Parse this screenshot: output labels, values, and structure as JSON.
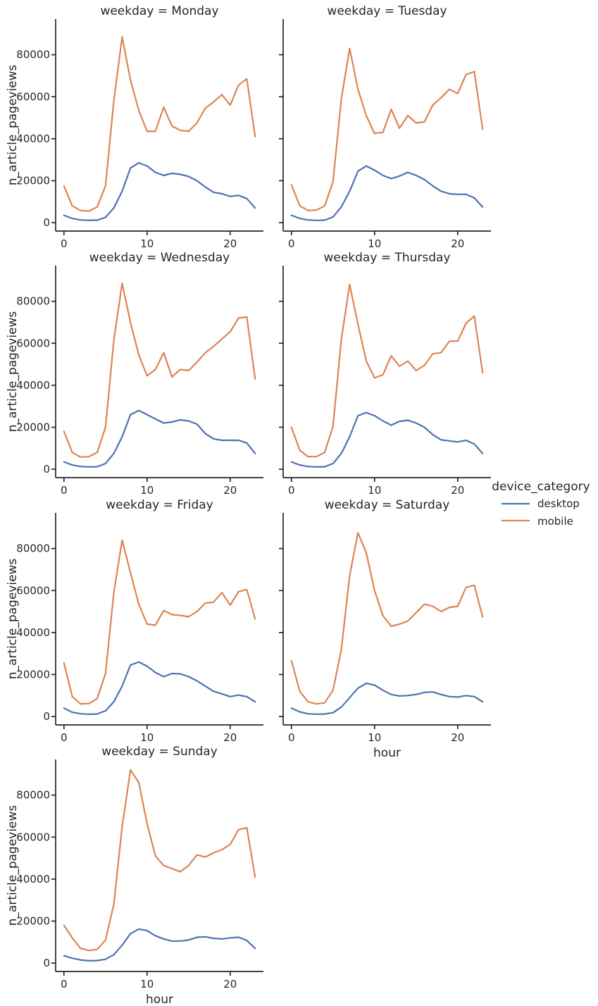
{
  "chart_data": {
    "type": "line",
    "facet_title_prefix": "weekday = ",
    "xlabel": "hour",
    "ylabel": "n_article_pageviews",
    "xlim": [
      -1,
      24
    ],
    "ylim": [
      -4000,
      97000
    ],
    "xticks": [
      0,
      10,
      20
    ],
    "yticks": [
      0,
      20000,
      40000,
      60000,
      80000
    ],
    "legend": {
      "title": "device_category",
      "position": "right",
      "entries": [
        {
          "name": "desktop",
          "color": "#4c72b0"
        },
        {
          "name": "mobile",
          "color": "#dd8452"
        }
      ]
    },
    "x": [
      0,
      1,
      2,
      3,
      4,
      5,
      6,
      7,
      8,
      9,
      10,
      11,
      12,
      13,
      14,
      15,
      16,
      17,
      18,
      19,
      20,
      21,
      22,
      23
    ],
    "panels": [
      {
        "weekday": "Monday",
        "series": [
          {
            "name": "desktop",
            "values": [
              3500,
              2000,
              1300,
              1100,
              1200,
              2500,
              7000,
              15000,
              26000,
              28500,
              27000,
              24000,
              22500,
              23500,
              23000,
              22000,
              20000,
              17000,
              14500,
              13800,
              12500,
              13000,
              11500,
              7000
            ]
          },
          {
            "name": "mobile",
            "values": [
              17500,
              8000,
              5800,
              5500,
              7500,
              17500,
              58000,
              88500,
              68000,
              53500,
              43500,
              43500,
              55000,
              46000,
              44000,
              43500,
              47500,
              54500,
              57500,
              61000,
              56000,
              65500,
              68500,
              41000
            ]
          }
        ]
      },
      {
        "weekday": "Tuesday",
        "series": [
          {
            "name": "desktop",
            "values": [
              3500,
              2000,
              1300,
              1100,
              1200,
              2700,
              7500,
              15000,
              24500,
              27000,
              25000,
              22500,
              21000,
              22200,
              24000,
              22500,
              20500,
              17500,
              15000,
              13800,
              13500,
              13500,
              11800,
              7500
            ]
          },
          {
            "name": "mobile",
            "values": [
              18000,
              8000,
              5800,
              6000,
              8000,
              19500,
              59000,
              83000,
              63500,
              51000,
              42500,
              43000,
              54000,
              45000,
              51000,
              47500,
              48000,
              56000,
              59500,
              63500,
              61500,
              70500,
              72000,
              44500
            ]
          }
        ]
      },
      {
        "weekday": "Wednesday",
        "series": [
          {
            "name": "desktop",
            "values": [
              3500,
              2000,
              1300,
              1100,
              1200,
              2700,
              7500,
              15500,
              26000,
              28000,
              26000,
              24000,
              22000,
              22500,
              23500,
              23000,
              21500,
              17000,
              14500,
              13800,
              13800,
              13800,
              12500,
              7500
            ]
          },
          {
            "name": "mobile",
            "values": [
              18000,
              8000,
              5800,
              6000,
              8000,
              20000,
              61500,
              88500,
              70000,
              54500,
              44500,
              47500,
              55500,
              44000,
              47500,
              47000,
              51000,
              55500,
              58500,
              62000,
              65500,
              72000,
              72500,
              43000
            ]
          }
        ]
      },
      {
        "weekday": "Thursday",
        "series": [
          {
            "name": "desktop",
            "values": [
              3500,
              2000,
              1300,
              1100,
              1200,
              2700,
              7500,
              15500,
              25500,
              27000,
              25500,
              23000,
              21000,
              22800,
              23300,
              22000,
              20000,
              16500,
              14000,
              13500,
              13000,
              13800,
              12000,
              7500
            ]
          },
          {
            "name": "mobile",
            "values": [
              20000,
              9000,
              6000,
              6000,
              8000,
              20500,
              62000,
              88000,
              69000,
              51500,
              43500,
              45000,
              54000,
              49000,
              51500,
              47000,
              49500,
              55000,
              55500,
              61000,
              61000,
              69500,
              73000,
              46000
            ]
          }
        ]
      },
      {
        "weekday": "Friday",
        "series": [
          {
            "name": "desktop",
            "values": [
              4000,
              2000,
              1300,
              1100,
              1200,
              2700,
              7000,
              14500,
              24500,
              26000,
              24000,
              21000,
              19000,
              20500,
              20300,
              19000,
              17000,
              14500,
              12000,
              10800,
              9500,
              10200,
              9500,
              7000
            ]
          },
          {
            "name": "mobile",
            "values": [
              25500,
              9500,
              6000,
              6200,
              8500,
              20500,
              59000,
              84000,
              68500,
              53500,
              44000,
              43500,
              50500,
              48500,
              48200,
              47500,
              50000,
              54000,
              54500,
              59000,
              53000,
              59500,
              60500,
              46500
            ]
          }
        ]
      },
      {
        "weekday": "Saturday",
        "series": [
          {
            "name": "desktop",
            "values": [
              4000,
              2200,
              1300,
              1100,
              1200,
              1800,
              4500,
              9000,
              13500,
              15800,
              15000,
              12500,
              10500,
              9800,
              10000,
              10500,
              11500,
              11700,
              10500,
              9500,
              9300,
              10000,
              9500,
              7000
            ]
          },
          {
            "name": "mobile",
            "values": [
              26500,
              12000,
              7000,
              6000,
              6500,
              12500,
              32000,
              67000,
              87500,
              78000,
              60000,
              48000,
              43000,
              44000,
              45500,
              49500,
              53500,
              52500,
              50000,
              52000,
              52500,
              61500,
              62500,
              47500
            ]
          }
        ]
      },
      {
        "weekday": "Sunday",
        "series": [
          {
            "name": "desktop",
            "values": [
              3500,
              2300,
              1500,
              1100,
              1200,
              1800,
              4000,
              8500,
              14000,
              16200,
              15500,
              13000,
              11500,
              10500,
              10500,
              11000,
              12300,
              12500,
              11800,
              11500,
              12000,
              12300,
              10800,
              7000
            ]
          },
          {
            "name": "mobile",
            "values": [
              18000,
              12000,
              7000,
              6000,
              6500,
              11000,
              28000,
              65000,
              92000,
              86000,
              66500,
              51000,
              46500,
              45000,
              43500,
              46500,
              51500,
              50500,
              52500,
              54000,
              56500,
              63500,
              64500,
              41000
            ]
          }
        ]
      }
    ]
  }
}
